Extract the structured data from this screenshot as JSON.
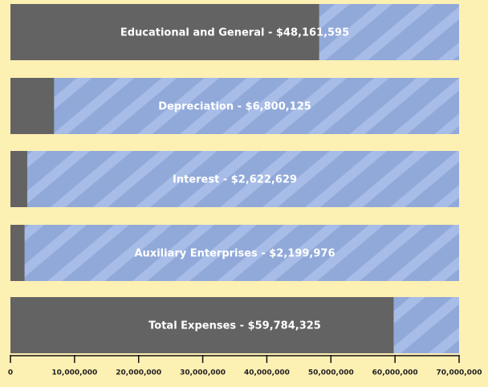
{
  "chart_data": {
    "type": "bar",
    "orientation": "horizontal",
    "categories": [
      "Educational and General - $48,161,595",
      "Depreciation - $6,800,125",
      "Interest - $2,622,629",
      "Auxiliary Enterprises - $2,199,976",
      "Total Expenses - $59,784,325"
    ],
    "values": [
      48161595,
      6800125,
      2622629,
      2199976,
      59784325
    ],
    "color": "#636363",
    "track_color": "#91a9d9",
    "xlim": [
      0,
      70000000
    ],
    "xticks": [
      0,
      {
        "value": 10000000,
        "label": "10,000,000"
      },
      {
        "value": 20000000,
        "label": "20,000,000"
      },
      {
        "value": 30000000,
        "label": "30,000,000"
      },
      {
        "value": 40000000,
        "label": "40,000,000"
      },
      {
        "value": 50000000,
        "label": "50,000,000"
      },
      {
        "value": 60000000,
        "label": "60,000,000"
      },
      {
        "value": 70000000,
        "label": "70,000,000"
      }
    ]
  }
}
